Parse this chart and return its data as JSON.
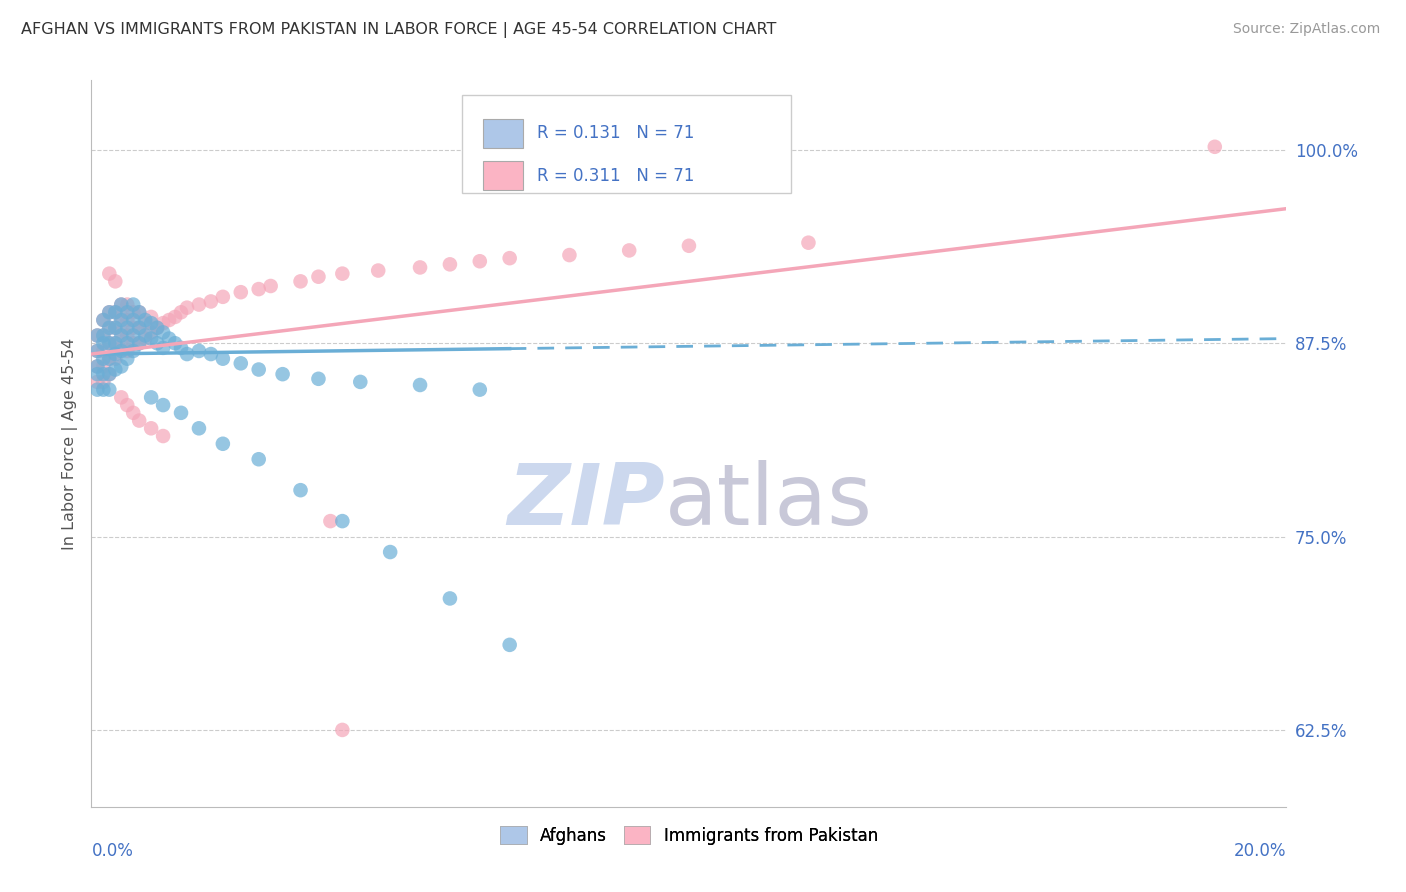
{
  "title": "AFGHAN VS IMMIGRANTS FROM PAKISTAN IN LABOR FORCE | AGE 45-54 CORRELATION CHART",
  "source": "Source: ZipAtlas.com",
  "ylabel": "In Labor Force | Age 45-54",
  "xlim": [
    0.0,
    0.2
  ],
  "ylim": [
    0.575,
    1.045
  ],
  "yticks": [
    0.625,
    0.75,
    0.875,
    1.0
  ],
  "ytick_labels": [
    "62.5%",
    "75.0%",
    "87.5%",
    "100.0%"
  ],
  "blue_color": "#6aaed6",
  "pink_color": "#f4a6b8",
  "blue_fill": "#aec7e8",
  "pink_fill": "#fbb4c4",
  "R_blue": 0.131,
  "R_pink": 0.311,
  "N": 71,
  "watermark_zip_color": "#ccd8ee",
  "watermark_atlas_color": "#c8c8d8",
  "blue_x": [
    0.001,
    0.001,
    0.001,
    0.001,
    0.001,
    0.002,
    0.002,
    0.002,
    0.002,
    0.002,
    0.002,
    0.003,
    0.003,
    0.003,
    0.003,
    0.003,
    0.003,
    0.004,
    0.004,
    0.004,
    0.004,
    0.004,
    0.005,
    0.005,
    0.005,
    0.005,
    0.005,
    0.006,
    0.006,
    0.006,
    0.006,
    0.007,
    0.007,
    0.007,
    0.007,
    0.008,
    0.008,
    0.008,
    0.009,
    0.009,
    0.01,
    0.01,
    0.011,
    0.011,
    0.012,
    0.012,
    0.013,
    0.014,
    0.015,
    0.016,
    0.018,
    0.02,
    0.022,
    0.025,
    0.028,
    0.032,
    0.038,
    0.045,
    0.055,
    0.065,
    0.01,
    0.012,
    0.015,
    0.018,
    0.022,
    0.028,
    0.035,
    0.042,
    0.05,
    0.06,
    0.07
  ],
  "blue_y": [
    0.88,
    0.87,
    0.86,
    0.855,
    0.845,
    0.89,
    0.88,
    0.875,
    0.865,
    0.855,
    0.845,
    0.895,
    0.885,
    0.875,
    0.865,
    0.855,
    0.845,
    0.895,
    0.885,
    0.875,
    0.868,
    0.858,
    0.9,
    0.89,
    0.88,
    0.87,
    0.86,
    0.895,
    0.885,
    0.875,
    0.865,
    0.9,
    0.89,
    0.88,
    0.87,
    0.895,
    0.885,
    0.875,
    0.89,
    0.88,
    0.888,
    0.878,
    0.885,
    0.875,
    0.882,
    0.872,
    0.878,
    0.875,
    0.872,
    0.868,
    0.87,
    0.868,
    0.865,
    0.862,
    0.858,
    0.855,
    0.852,
    0.85,
    0.848,
    0.845,
    0.84,
    0.835,
    0.83,
    0.82,
    0.81,
    0.8,
    0.78,
    0.76,
    0.74,
    0.71,
    0.68
  ],
  "pink_x": [
    0.001,
    0.001,
    0.001,
    0.001,
    0.002,
    0.002,
    0.002,
    0.002,
    0.002,
    0.003,
    0.003,
    0.003,
    0.003,
    0.003,
    0.004,
    0.004,
    0.004,
    0.004,
    0.005,
    0.005,
    0.005,
    0.005,
    0.006,
    0.006,
    0.006,
    0.006,
    0.007,
    0.007,
    0.007,
    0.008,
    0.008,
    0.008,
    0.009,
    0.009,
    0.01,
    0.01,
    0.011,
    0.012,
    0.013,
    0.014,
    0.015,
    0.016,
    0.018,
    0.02,
    0.022,
    0.025,
    0.028,
    0.03,
    0.035,
    0.038,
    0.042,
    0.048,
    0.055,
    0.06,
    0.065,
    0.07,
    0.08,
    0.09,
    0.1,
    0.12,
    0.003,
    0.004,
    0.005,
    0.006,
    0.007,
    0.008,
    0.01,
    0.012,
    0.04,
    0.042,
    0.188
  ],
  "pink_y": [
    0.88,
    0.87,
    0.86,
    0.85,
    0.89,
    0.88,
    0.87,
    0.86,
    0.85,
    0.895,
    0.885,
    0.875,
    0.865,
    0.855,
    0.895,
    0.885,
    0.875,
    0.865,
    0.9,
    0.892,
    0.882,
    0.872,
    0.9,
    0.89,
    0.88,
    0.87,
    0.895,
    0.885,
    0.875,
    0.895,
    0.885,
    0.875,
    0.888,
    0.878,
    0.892,
    0.882,
    0.885,
    0.888,
    0.89,
    0.892,
    0.895,
    0.898,
    0.9,
    0.902,
    0.905,
    0.908,
    0.91,
    0.912,
    0.915,
    0.918,
    0.92,
    0.922,
    0.924,
    0.926,
    0.928,
    0.93,
    0.932,
    0.935,
    0.938,
    0.94,
    0.92,
    0.915,
    0.84,
    0.835,
    0.83,
    0.825,
    0.82,
    0.815,
    0.76,
    0.625,
    1.002
  ]
}
